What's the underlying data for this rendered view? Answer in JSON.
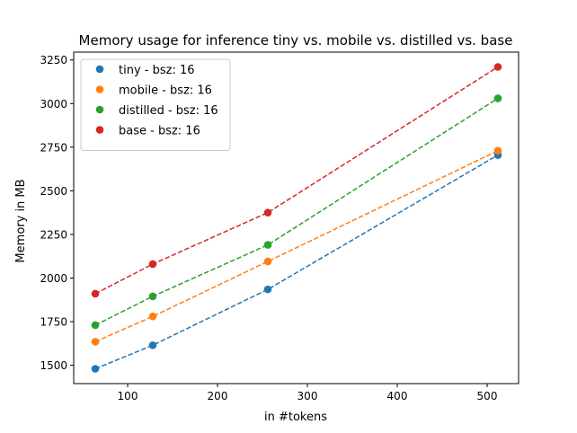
{
  "chart_data": {
    "type": "scatter",
    "title": "Memory usage for inference tiny vs. mobile vs. distilled vs. base",
    "xlabel": "in #tokens",
    "ylabel": "Memory in MB",
    "xlim": [
      40,
      535
    ],
    "ylim": [
      1395,
      3295
    ],
    "xticks": [
      100,
      200,
      300,
      400,
      500
    ],
    "yticks": [
      1500,
      1750,
      2000,
      2250,
      2500,
      2750,
      3000,
      3250
    ],
    "grid": false,
    "legend_position": "upper-left",
    "x": [
      64,
      128,
      256,
      512
    ],
    "series": [
      {
        "name": "tiny - bsz: 16",
        "color": "#1f77b4",
        "values": [
          1480,
          1615,
          1935,
          2705
        ]
      },
      {
        "name": "mobile - bsz: 16",
        "color": "#ff7f0e",
        "values": [
          1635,
          1780,
          2095,
          2730
        ]
      },
      {
        "name": "distilled - bsz: 16",
        "color": "#2ca02c",
        "values": [
          1730,
          1895,
          2190,
          3030
        ]
      },
      {
        "name": "base - bsz: 16",
        "color": "#d62728",
        "values": [
          1910,
          2080,
          2375,
          3210
        ]
      }
    ],
    "fit_line_style": "dashed"
  }
}
